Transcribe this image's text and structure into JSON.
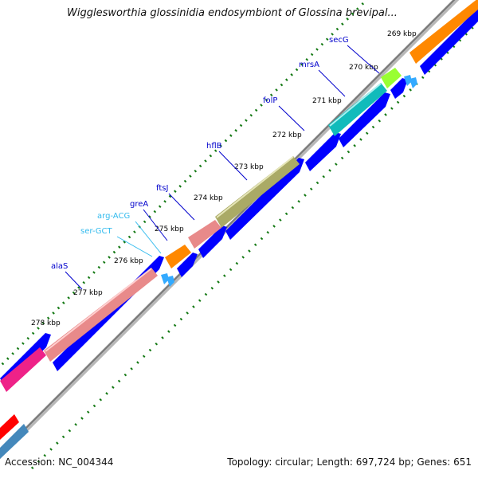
{
  "title": "Wigglesworthia glossinidia endosymbiont of Glossina brevipal...",
  "footer": {
    "accession": "Accession: NC_004344",
    "topology": "Topology: circular; Length: 697,724 bp; Genes: 651"
  },
  "scale_labels": [
    "269 kbp",
    "270 kbp",
    "271 kbp",
    "272 kbp",
    "273 kbp",
    "274 kbp",
    "275 kbp",
    "276 kbp",
    "277 kbp",
    "278 kbp"
  ],
  "genes": [
    {
      "name": "secG",
      "color": "#0000cc"
    },
    {
      "name": "mrsA",
      "color": "#0000cc"
    },
    {
      "name": "folP",
      "color": "#0000cc"
    },
    {
      "name": "hflB",
      "color": "#0000cc"
    },
    {
      "name": "ftsJ",
      "color": "#0000cc"
    },
    {
      "name": "greA",
      "color": "#0000cc"
    },
    {
      "name": "arg-ACG",
      "color": "#33bbee"
    },
    {
      "name": "ser-GCT",
      "color": "#33bbee"
    },
    {
      "name": "alaS",
      "color": "#0000cc"
    }
  ],
  "colors": {
    "cds_track": "#0000ff",
    "backbone": "#888888",
    "tick": "#117711",
    "trna": "#33aaff",
    "pink": "#e88a8a",
    "orange": "#ff8800",
    "olive": "#aaaa66",
    "teal": "#11bbbb",
    "lime": "#99ff33",
    "magenta": "#ee2288",
    "red": "#ff0000",
    "steel": "#4488bb"
  }
}
